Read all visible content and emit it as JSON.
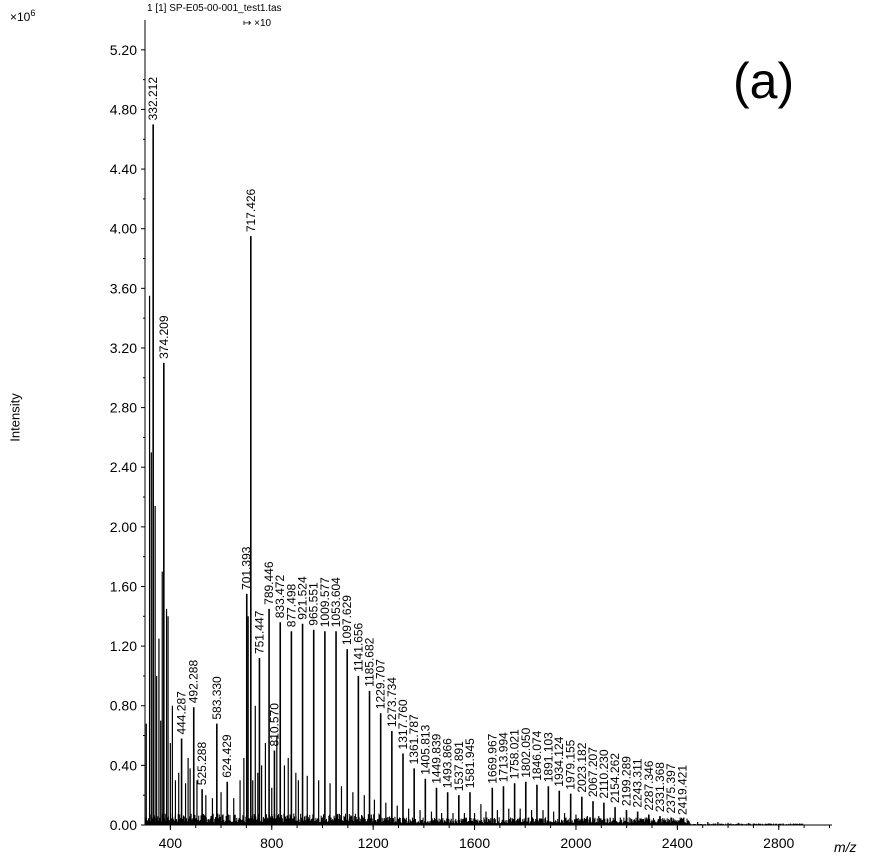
{
  "file_title": "1 [1] SP-E05-00-001_test1.tas",
  "zoom_note": "↦ ×10",
  "panel_label": "(a)",
  "chart_data": {
    "type": "bar",
    "title": "",
    "xlabel": "m/z",
    "ylabel": "Intensity",
    "y_multiplier_base": "×10",
    "y_multiplier_exp": "6",
    "xlim": [
      300,
      3010
    ],
    "ylim": [
      0,
      5.4
    ],
    "xticks": [
      400,
      800,
      1200,
      1600,
      2000,
      2400,
      2800
    ],
    "xtick_labels": [
      "400",
      "800",
      "1200",
      "1600",
      "2000",
      "2400",
      "2800"
    ],
    "yticks": [
      0,
      0.4,
      0.8,
      1.2,
      1.6,
      2.0,
      2.4,
      2.8,
      3.2,
      3.6,
      4.0,
      4.4,
      4.8,
      5.2
    ],
    "ytick_labels": [
      "0.00",
      "0.40",
      "0.80",
      "1.20",
      "1.60",
      "2.00",
      "2.40",
      "2.80",
      "3.20",
      "3.60",
      "4.00",
      "4.40",
      "4.80",
      "5.20"
    ],
    "grid": false,
    "peaks": [
      {
        "mz": 332.212,
        "label": "332.212",
        "intensity": 4.7
      },
      {
        "mz": 374.209,
        "label": "374.209",
        "intensity": 3.1
      },
      {
        "mz": 444.287,
        "label": "444.287",
        "intensity": 0.58
      },
      {
        "mz": 492.288,
        "label": "492.288",
        "intensity": 0.79
      },
      {
        "mz": 525.288,
        "label": "525.288",
        "intensity": 0.24
      },
      {
        "mz": 583.33,
        "label": "583.330",
        "intensity": 0.68
      },
      {
        "mz": 624.429,
        "label": "624.429",
        "intensity": 0.29
      },
      {
        "mz": 701.393,
        "label": "701.393",
        "intensity": 1.55
      },
      {
        "mz": 717.426,
        "label": "717.426",
        "intensity": 3.95
      },
      {
        "mz": 751.447,
        "label": "751.447",
        "intensity": 1.12
      },
      {
        "mz": 789.446,
        "label": "789.446",
        "intensity": 1.45
      },
      {
        "mz": 810.57,
        "label": "810.570",
        "intensity": 0.5
      },
      {
        "mz": 833.472,
        "label": "833.472",
        "intensity": 1.36
      },
      {
        "mz": 877.498,
        "label": "877.498",
        "intensity": 1.3
      },
      {
        "mz": 921.524,
        "label": "921.524",
        "intensity": 1.35
      },
      {
        "mz": 965.551,
        "label": "965.551",
        "intensity": 1.31
      },
      {
        "mz": 1009.577,
        "label": "1009.577",
        "intensity": 1.3
      },
      {
        "mz": 1053.604,
        "label": "1053.604",
        "intensity": 1.3
      },
      {
        "mz": 1097.629,
        "label": "1097.629",
        "intensity": 1.18
      },
      {
        "mz": 1141.656,
        "label": "1141.656",
        "intensity": 1.0
      },
      {
        "mz": 1185.682,
        "label": "1185.682",
        "intensity": 0.9
      },
      {
        "mz": 1229.707,
        "label": "1229.707",
        "intensity": 0.75
      },
      {
        "mz": 1273.734,
        "label": "1273.734",
        "intensity": 0.63
      },
      {
        "mz": 1317.76,
        "label": "1317.760",
        "intensity": 0.48
      },
      {
        "mz": 1361.787,
        "label": "1361.787",
        "intensity": 0.38
      },
      {
        "mz": 1405.813,
        "label": "1405.813",
        "intensity": 0.31
      },
      {
        "mz": 1449.839,
        "label": "1449.839",
        "intensity": 0.25
      },
      {
        "mz": 1493.866,
        "label": "1493.866",
        "intensity": 0.22
      },
      {
        "mz": 1537.891,
        "label": "1537.891",
        "intensity": 0.2
      },
      {
        "mz": 1581.945,
        "label": "1581.945",
        "intensity": 0.22
      },
      {
        "mz": 1669.967,
        "label": "1669.967",
        "intensity": 0.25
      },
      {
        "mz": 1713.994,
        "label": "1713.994",
        "intensity": 0.26
      },
      {
        "mz": 1758.021,
        "label": "1758.021",
        "intensity": 0.28
      },
      {
        "mz": 1802.05,
        "label": "1802.050",
        "intensity": 0.29
      },
      {
        "mz": 1846.074,
        "label": "1846.074",
        "intensity": 0.27
      },
      {
        "mz": 1891.103,
        "label": "1891.103",
        "intensity": 0.26
      },
      {
        "mz": 1934.124,
        "label": "1934.124",
        "intensity": 0.23
      },
      {
        "mz": 1979.155,
        "label": "1979.155",
        "intensity": 0.21
      },
      {
        "mz": 2023.182,
        "label": "2023.182",
        "intensity": 0.19
      },
      {
        "mz": 2067.207,
        "label": "2067.207",
        "intensity": 0.16
      },
      {
        "mz": 2110.23,
        "label": "2110.230",
        "intensity": 0.15
      },
      {
        "mz": 2154.262,
        "label": "2154.262",
        "intensity": 0.12
      },
      {
        "mz": 2199.289,
        "label": "2199.289",
        "intensity": 0.1
      },
      {
        "mz": 2243.311,
        "label": "2243.311",
        "intensity": 0.09
      },
      {
        "mz": 2287.346,
        "label": "2287.346",
        "intensity": 0.07
      },
      {
        "mz": 2331.368,
        "label": "2331.368",
        "intensity": 0.06
      },
      {
        "mz": 2375.397,
        "label": "2375.397",
        "intensity": 0.05
      },
      {
        "mz": 2419.421,
        "label": "2419.421",
        "intensity": 0.04
      }
    ],
    "unlabeled_peaks": [
      {
        "mz": 305,
        "intensity": 0.68
      },
      {
        "mz": 318,
        "intensity": 3.55
      },
      {
        "mz": 325,
        "intensity": 2.5
      },
      {
        "mz": 340,
        "intensity": 2.14
      },
      {
        "mz": 346,
        "intensity": 1.0
      },
      {
        "mz": 355,
        "intensity": 1.25
      },
      {
        "mz": 362,
        "intensity": 0.7
      },
      {
        "mz": 368,
        "intensity": 1.7
      },
      {
        "mz": 385,
        "intensity": 1.45
      },
      {
        "mz": 391,
        "intensity": 1.4
      },
      {
        "mz": 400,
        "intensity": 0.55
      },
      {
        "mz": 408,
        "intensity": 0.8
      },
      {
        "mz": 420,
        "intensity": 0.3
      },
      {
        "mz": 433,
        "intensity": 0.35
      },
      {
        "mz": 460,
        "intensity": 0.28
      },
      {
        "mz": 470,
        "intensity": 0.45
      },
      {
        "mz": 478,
        "intensity": 0.38
      },
      {
        "mz": 505,
        "intensity": 0.3
      },
      {
        "mz": 540,
        "intensity": 0.2
      },
      {
        "mz": 566,
        "intensity": 0.18
      },
      {
        "mz": 600,
        "intensity": 0.22
      },
      {
        "mz": 650,
        "intensity": 0.18
      },
      {
        "mz": 675,
        "intensity": 0.3
      },
      {
        "mz": 690,
        "intensity": 0.45
      },
      {
        "mz": 707,
        "intensity": 1.4
      },
      {
        "mz": 725,
        "intensity": 0.3
      },
      {
        "mz": 735,
        "intensity": 0.8
      },
      {
        "mz": 745,
        "intensity": 0.35
      },
      {
        "mz": 760,
        "intensity": 0.4
      },
      {
        "mz": 775,
        "intensity": 0.55
      },
      {
        "mz": 800,
        "intensity": 0.25
      },
      {
        "mz": 820,
        "intensity": 0.6
      },
      {
        "mz": 850,
        "intensity": 0.4
      },
      {
        "mz": 865,
        "intensity": 0.45
      },
      {
        "mz": 895,
        "intensity": 0.35
      },
      {
        "mz": 905,
        "intensity": 0.3
      },
      {
        "mz": 940,
        "intensity": 0.33
      },
      {
        "mz": 985,
        "intensity": 0.3
      },
      {
        "mz": 1030,
        "intensity": 0.28
      },
      {
        "mz": 1075,
        "intensity": 0.26
      },
      {
        "mz": 1120,
        "intensity": 0.22
      },
      {
        "mz": 1165,
        "intensity": 0.2
      },
      {
        "mz": 1205,
        "intensity": 0.17
      },
      {
        "mz": 1250,
        "intensity": 0.15
      },
      {
        "mz": 1295,
        "intensity": 0.13
      },
      {
        "mz": 1340,
        "intensity": 0.11
      },
      {
        "mz": 1385,
        "intensity": 0.1
      },
      {
        "mz": 1430,
        "intensity": 0.09
      },
      {
        "mz": 1470,
        "intensity": 0.08
      },
      {
        "mz": 1515,
        "intensity": 0.08
      },
      {
        "mz": 1560,
        "intensity": 0.08
      },
      {
        "mz": 1600,
        "intensity": 0.08
      },
      {
        "mz": 1625,
        "intensity": 0.14
      },
      {
        "mz": 1645,
        "intensity": 0.09
      },
      {
        "mz": 1690,
        "intensity": 0.1
      },
      {
        "mz": 1735,
        "intensity": 0.11
      },
      {
        "mz": 1780,
        "intensity": 0.11
      },
      {
        "mz": 1825,
        "intensity": 0.1
      },
      {
        "mz": 1870,
        "intensity": 0.1
      },
      {
        "mz": 1912,
        "intensity": 0.09
      },
      {
        "mz": 1955,
        "intensity": 0.08
      },
      {
        "mz": 2000,
        "intensity": 0.07
      },
      {
        "mz": 2045,
        "intensity": 0.06
      },
      {
        "mz": 2090,
        "intensity": 0.06
      },
      {
        "mz": 2135,
        "intensity": 0.05
      },
      {
        "mz": 2175,
        "intensity": 0.05
      },
      {
        "mz": 2220,
        "intensity": 0.04
      },
      {
        "mz": 2265,
        "intensity": 0.04
      },
      {
        "mz": 2310,
        "intensity": 0.03
      },
      {
        "mz": 2350,
        "intensity": 0.03
      },
      {
        "mz": 2395,
        "intensity": 0.03
      },
      {
        "mz": 2440,
        "intensity": 0.03
      },
      {
        "mz": 2480,
        "intensity": 0.02
      },
      {
        "mz": 2520,
        "intensity": 0.02
      },
      {
        "mz": 2560,
        "intensity": 0.02
      },
      {
        "mz": 2600,
        "intensity": 0.015
      },
      {
        "mz": 2640,
        "intensity": 0.015
      },
      {
        "mz": 2680,
        "intensity": 0.012
      },
      {
        "mz": 2720,
        "intensity": 0.01
      },
      {
        "mz": 2760,
        "intensity": 0.01
      },
      {
        "mz": 2800,
        "intensity": 0.008
      },
      {
        "mz": 2840,
        "intensity": 0.006
      }
    ],
    "bar_color": "#000000"
  }
}
